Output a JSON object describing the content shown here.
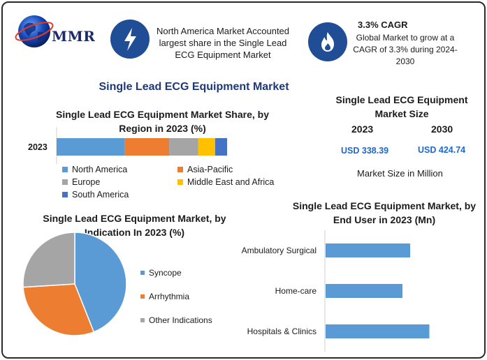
{
  "logo": {
    "text": "MMR"
  },
  "header": {
    "box1_text": "North America Market Accounted largest share in the Single Lead ECG Equipment Market",
    "box2_title": "3.3% CAGR",
    "box2_text": "Global Market to grow at a CAGR of 3.3% during 2024-2030"
  },
  "main_title": "Single Lead ECG Equipment Market",
  "market_size": {
    "title": "Single Lead ECG Equipment Market Size",
    "year1": "2023",
    "year2": "2030",
    "value1": "USD 338.39",
    "value2": "USD 424.74",
    "note": "Market Size in Million"
  },
  "colors": {
    "blue": "#5b9bd5",
    "orange": "#ed7d31",
    "gray": "#a5a5a5",
    "yellow": "#ffc000",
    "darkblue": "#4472c4",
    "accent": "#1f4e96"
  },
  "chart_data": [
    {
      "type": "bar",
      "orientation": "horizontal-stacked",
      "title": "Single Lead ECG Equipment Market Share, by Region in 2023 (%)",
      "categories": [
        "2023"
      ],
      "series": [
        {
          "name": "North America",
          "values": [
            40
          ],
          "color": "#5b9bd5"
        },
        {
          "name": "Asia-Pacific",
          "values": [
            26
          ],
          "color": "#ed7d31"
        },
        {
          "name": "Europe",
          "values": [
            17
          ],
          "color": "#a5a5a5"
        },
        {
          "name": "Middle East and Africa",
          "values": [
            10
          ],
          "color": "#ffc000"
        },
        {
          "name": "South America",
          "values": [
            7
          ],
          "color": "#4472c4"
        }
      ],
      "xlim": [
        0,
        100
      ],
      "legend": "bottom"
    },
    {
      "type": "pie",
      "title": "Single Lead ECG Equipment Market, by Indication In 2023 (%)",
      "labels": [
        "Syncope",
        "Arrhythmia",
        "Other Indications"
      ],
      "values": [
        44,
        30,
        26
      ],
      "colors": [
        "#5b9bd5",
        "#ed7d31",
        "#a5a5a5"
      ],
      "legend": "right"
    },
    {
      "type": "bar",
      "orientation": "horizontal",
      "title": "Single Lead ECG Equipment Market, by End User in 2023 (Mn)",
      "categories": [
        "Ambulatory Surgical",
        "Home-care",
        "Hospitals & Clinics"
      ],
      "values": [
        110,
        100,
        135
      ],
      "xlim": [
        0,
        200
      ],
      "color": "#5b9bd5"
    }
  ]
}
